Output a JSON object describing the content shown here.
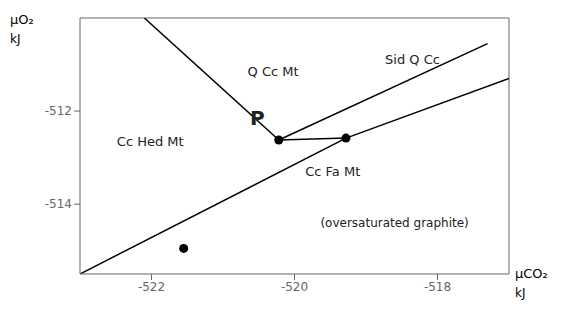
{
  "chart_data": {
    "type": "line",
    "x_label": [
      "μCO₂",
      "kJ"
    ],
    "y_label": [
      "μO₂",
      "kJ"
    ],
    "xlim": [
      -523.0,
      -517.0
    ],
    "ylim": [
      -515.5,
      -510.0
    ],
    "xticks": [
      -522,
      -520,
      -518
    ],
    "yticks": [
      -514,
      -512
    ],
    "grid": false,
    "series": [
      {
        "type": "line",
        "color": "black",
        "x": [
          -522.1,
          -520.22
        ],
        "y": [
          -510.0,
          -512.62
        ]
      },
      {
        "type": "line",
        "color": "black",
        "x": [
          -520.22,
          -517.3
        ],
        "y": [
          -512.62,
          -510.55
        ]
      },
      {
        "type": "line",
        "color": "black",
        "x": [
          -520.22,
          -519.28
        ],
        "y": [
          -512.62,
          -512.58
        ]
      },
      {
        "type": "line",
        "color": "black",
        "x": [
          -519.28,
          -517.0
        ],
        "y": [
          -512.58,
          -511.3
        ]
      },
      {
        "type": "line",
        "color": "black",
        "x": [
          -523.0,
          -519.28
        ],
        "y": [
          -515.5,
          -512.58
        ]
      },
      {
        "type": "scatter",
        "color": "black",
        "marker": "circle",
        "x": [
          -521.55,
          -520.22,
          -519.28
        ],
        "y": [
          -514.95,
          -512.62,
          -512.58
        ]
      }
    ],
    "annotations": [
      {
        "x": -520.3,
        "y": -511.15,
        "text": "Q Cc Mt"
      },
      {
        "x": -518.35,
        "y": -510.9,
        "text": "Sid Q Cc"
      },
      {
        "x": -521.55,
        "y": -512.65,
        "text": "Cc Hed Mt"
      },
      {
        "x": -519.85,
        "y": -513.3,
        "text": "Cc Fa Mt"
      },
      {
        "x": -518.6,
        "y": -514.4,
        "text": "(oversaturated graphite)"
      },
      {
        "x": -520.52,
        "y": -512.15,
        "text": "P"
      }
    ]
  }
}
